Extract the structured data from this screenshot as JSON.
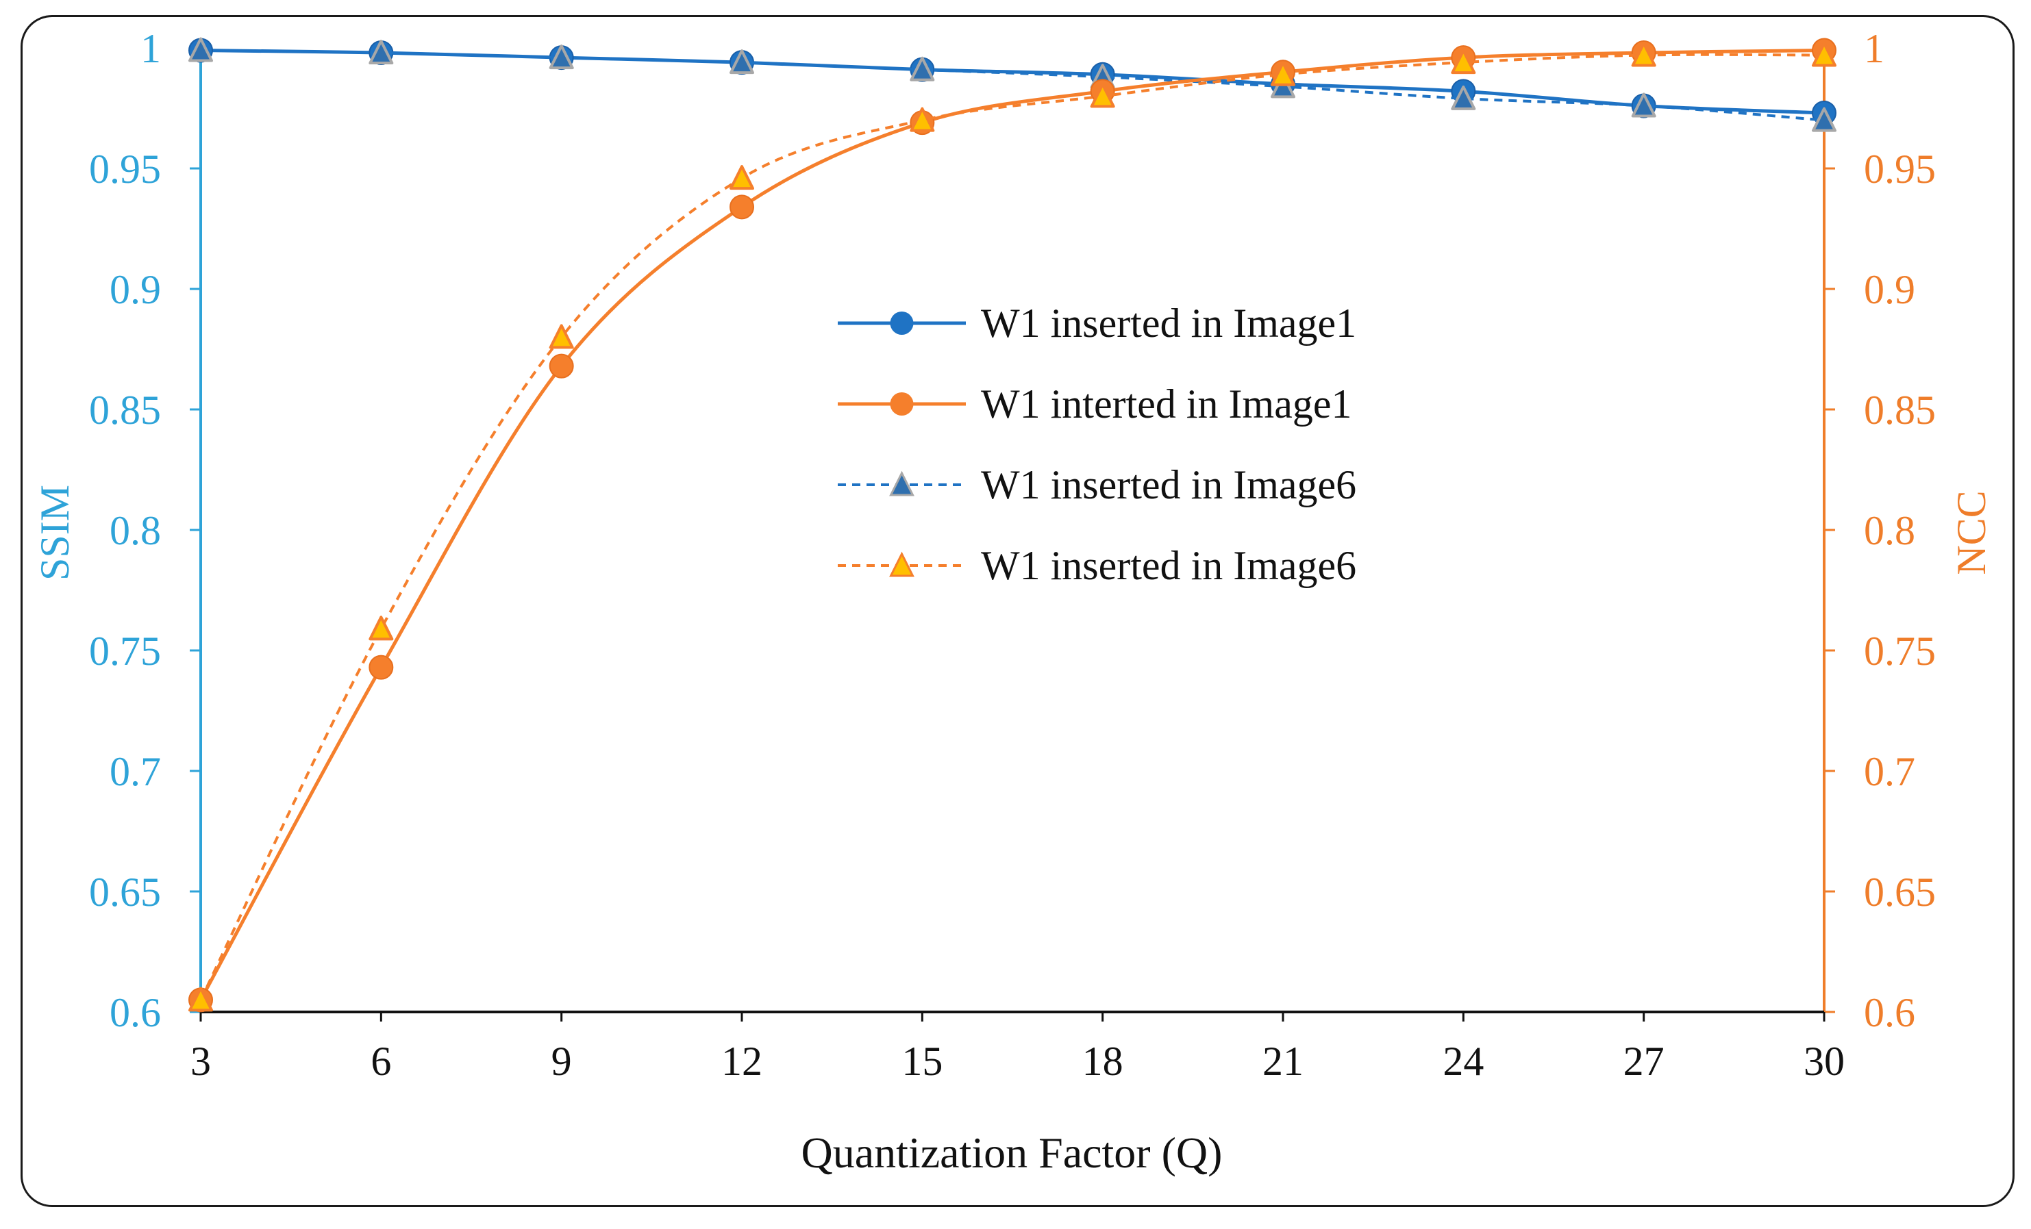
{
  "colors": {
    "ssim_axis": "#2ea3d8",
    "ncc_axis": "#ef7d2a",
    "blue_series": "#1f73c4",
    "orange_series": "#f57f2c",
    "triangle_fill_blue": "#2f6fae",
    "triangle_edge_blue": "#a8a8a8",
    "triangle_fill_orange": "#ffbf00",
    "triangle_edge_orange": "#f57f2c"
  },
  "chart_data": {
    "type": "line",
    "xlabel": "Quantization Factor (Q)",
    "ylabel_left": "SSIM",
    "ylabel_right": "NCC",
    "x": [
      3,
      6,
      9,
      12,
      15,
      18,
      21,
      24,
      27,
      30
    ],
    "xticks": [
      "3",
      "6",
      "9",
      "12",
      "15",
      "18",
      "21",
      "24",
      "27",
      "30"
    ],
    "ylim_left": [
      0.6,
      1
    ],
    "ylim_right": [
      0.6,
      1
    ],
    "yticks_left": [
      "0.6",
      "0.65",
      "0.7",
      "0.75",
      "0.8",
      "0.85",
      "0.9",
      "0.95",
      "1"
    ],
    "yticks_right": [
      "0.6",
      "0.65",
      "0.7",
      "0.75",
      "0.8",
      "0.85",
      "0.9",
      "0.95",
      "1"
    ],
    "legend_position": "center",
    "series": [
      {
        "name": "W1 inserted in Image1",
        "axis": "left",
        "line": "solid",
        "marker": "circle",
        "color": "#1f73c4",
        "values": [
          0.999,
          0.998,
          0.996,
          0.994,
          0.991,
          0.989,
          0.985,
          0.982,
          0.976,
          0.973
        ]
      },
      {
        "name": "W1 interted in Image1",
        "axis": "right",
        "line": "solid",
        "marker": "circle",
        "color": "#f57f2c",
        "values": [
          0.605,
          0.743,
          0.868,
          0.934,
          0.969,
          0.982,
          0.99,
          0.996,
          0.998,
          0.999
        ]
      },
      {
        "name": "W1 inserted in Image6",
        "axis": "left",
        "line": "dashed",
        "marker": "triangle",
        "color": "#1f73c4",
        "values": [
          0.999,
          0.998,
          0.996,
          0.994,
          0.991,
          0.988,
          0.984,
          0.979,
          0.976,
          0.97
        ]
      },
      {
        "name": "W1 inserted in Image6",
        "axis": "right",
        "line": "dashed",
        "marker": "triangle",
        "color": "#f57f2c",
        "values": [
          0.605,
          0.759,
          0.88,
          0.946,
          0.97,
          0.98,
          0.989,
          0.994,
          0.997,
          0.997
        ]
      }
    ]
  }
}
